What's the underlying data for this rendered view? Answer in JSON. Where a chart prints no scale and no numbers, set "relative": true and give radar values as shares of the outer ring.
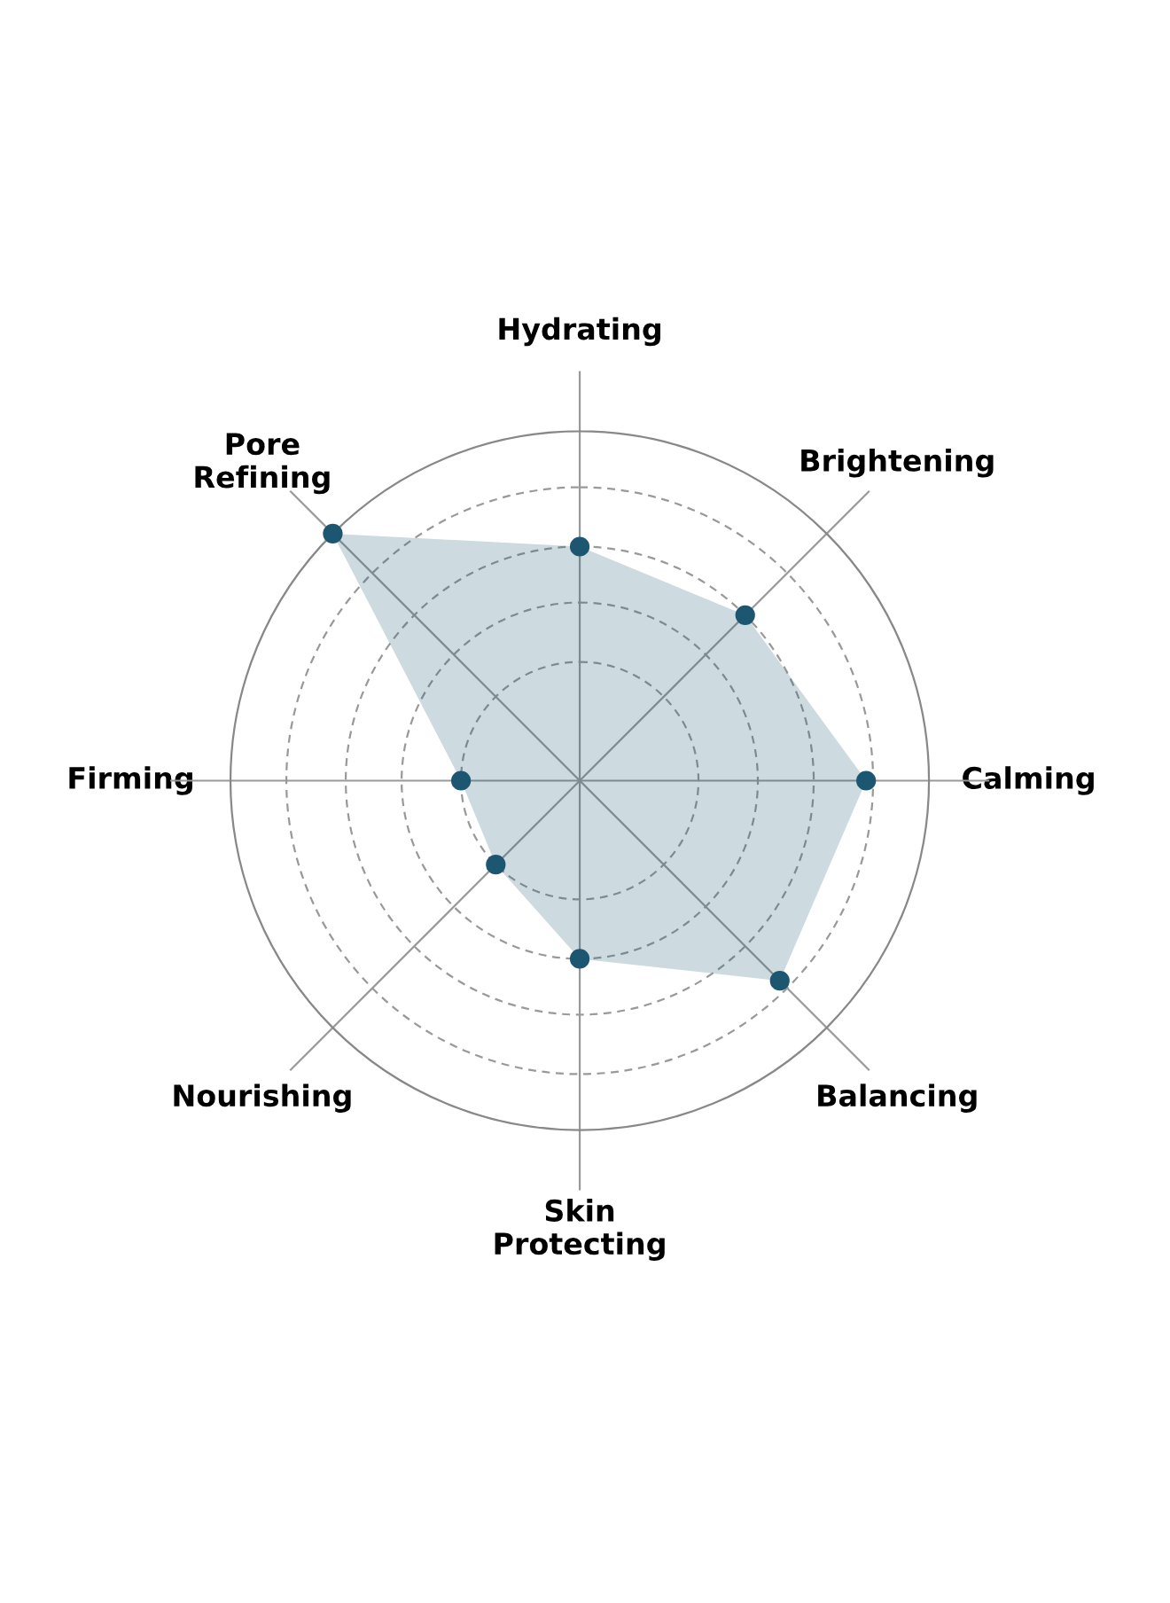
{
  "chart_data": {
    "type": "radar",
    "relative": true,
    "grid": true,
    "marker": "circle",
    "categories": [
      "Hydrating",
      "Brightening",
      "Calming",
      "Balancing",
      "Skin\nProtecting",
      "Nourishing",
      "Firming",
      "Pore\nRefining"
    ],
    "series": [
      {
        "color": "#1d5670",
        "values": [
          0.67,
          0.67,
          0.82,
          0.81,
          0.51,
          0.34,
          0.34,
          1.0
        ]
      }
    ]
  }
}
